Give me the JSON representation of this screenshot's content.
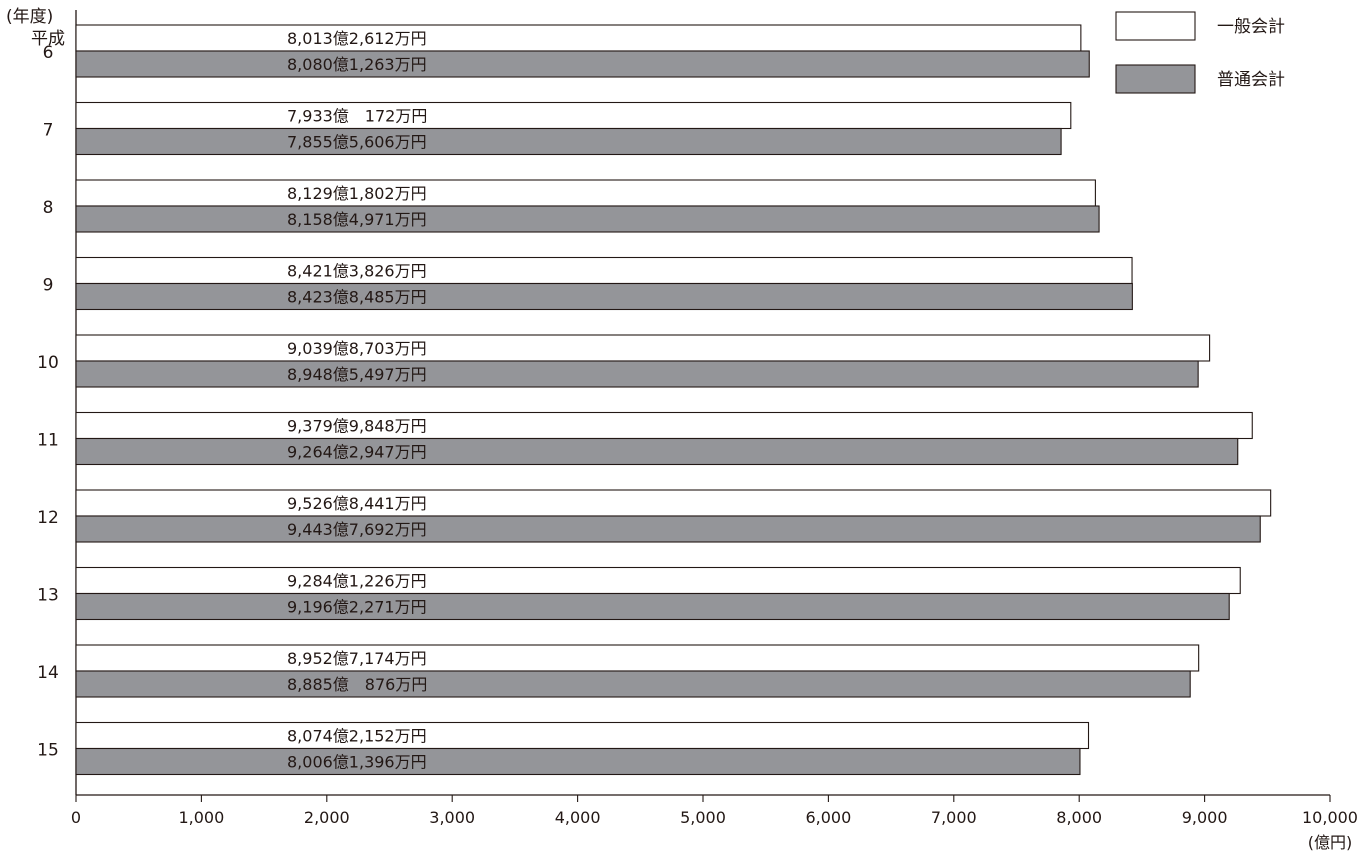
{
  "chart_data": {
    "type": "bar",
    "orientation": "horizontal",
    "y_unit_label": "(年度)",
    "era_label": "平成",
    "x_unit_label": "(億円)",
    "categories": [
      "6",
      "7",
      "8",
      "9",
      "10",
      "11",
      "12",
      "13",
      "14",
      "15"
    ],
    "series": [
      {
        "name": "一般会計",
        "color": "#ffffff",
        "values": [
          8013.2612,
          7933.0172,
          8129.1802,
          8421.3826,
          9039.8703,
          9379.9848,
          9526.8441,
          9284.1226,
          8952.7174,
          8074.2152
        ],
        "labels": [
          "8,013億2,612万円",
          "7,933億　172万円",
          "8,129億1,802万円",
          "8,421億3,826万円",
          "9,039億8,703万円",
          "9,379億9,848万円",
          "9,526億8,441万円",
          "9,284億1,226万円",
          "8,952億7,174万円",
          "8,074億2,152万円"
        ]
      },
      {
        "name": "普通会計",
        "color": "#949599",
        "values": [
          8080.1263,
          7855.5606,
          8158.4971,
          8423.8485,
          8948.5497,
          9264.2947,
          9443.7692,
          9196.2271,
          8885.0876,
          8006.1396
        ],
        "labels": [
          "8,080億1,263万円",
          "7,855億5,606万円",
          "8,158億4,971万円",
          "8,423億8,485万円",
          "8,948億5,497万円",
          "9,264億2,947万円",
          "9,443億7,692万円",
          "9,196億2,271万円",
          "8,885億　876万円",
          "8,006億1,396万円"
        ]
      }
    ],
    "xlim": [
      0,
      10000
    ],
    "x_ticks": [
      "0",
      "1,000",
      "2,000",
      "3,000",
      "4,000",
      "5,000",
      "6,000",
      "7,000",
      "8,000",
      "9,000",
      "10,000"
    ],
    "legend_position": "top-right",
    "grid": false
  }
}
